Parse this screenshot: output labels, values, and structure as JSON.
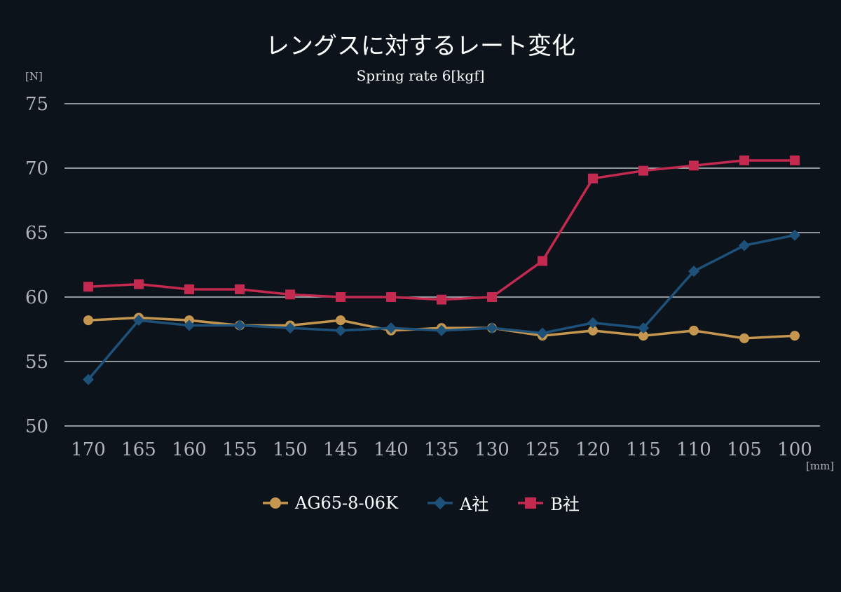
{
  "chart_data": {
    "type": "line",
    "title": "レングスに対するレート変化",
    "subtitle": "Spring rate 6[kgf]",
    "ylabel": "[N]",
    "xlabel": "[mm]",
    "ylim": [
      50,
      75
    ],
    "yticks": [
      "50",
      "55",
      "60",
      "65",
      "70",
      "75"
    ],
    "categories": [
      "170",
      "165",
      "160",
      "155",
      "150",
      "145",
      "140",
      "135",
      "130",
      "125",
      "120",
      "115",
      "110",
      "105",
      "100"
    ],
    "grid": true,
    "legend_position": "bottom",
    "series": [
      {
        "name": "AG65-8-06K",
        "color": "#c5964f",
        "marker": "circle",
        "values": [
          58.2,
          58.4,
          58.2,
          57.8,
          57.8,
          58.2,
          57.4,
          57.6,
          57.6,
          57.0,
          57.4,
          57.0,
          57.4,
          56.8,
          57.0
        ]
      },
      {
        "name": "A社",
        "color": "#1e5179",
        "marker": "diamond",
        "values": [
          53.6,
          58.2,
          57.8,
          57.8,
          57.6,
          57.4,
          57.6,
          57.4,
          57.6,
          57.2,
          58.0,
          57.6,
          62.0,
          64.0,
          64.8
        ]
      },
      {
        "name": "B社",
        "color": "#c4294f",
        "marker": "square",
        "values": [
          60.8,
          61.0,
          60.6,
          60.6,
          60.2,
          60.0,
          60.0,
          59.8,
          60.0,
          62.8,
          69.2,
          69.8,
          70.2,
          70.6,
          70.6
        ]
      }
    ]
  }
}
